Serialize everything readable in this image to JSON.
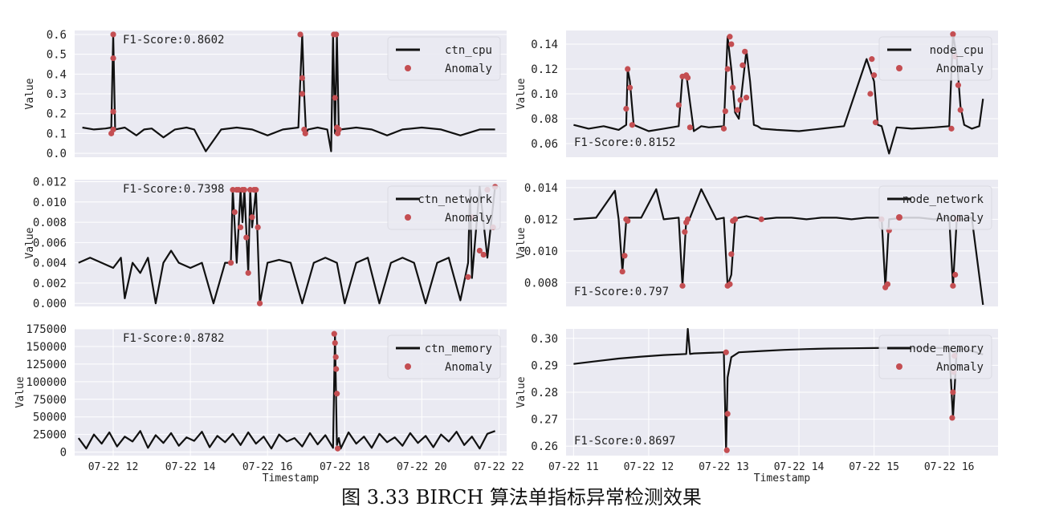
{
  "caption": "图 3.33 BIRCH 算法单指标异常检测效果",
  "colors": {
    "plot_bg": "#eaeaf2",
    "grid": "#ffffff",
    "line": "#111111",
    "anomaly": "#c44e52"
  },
  "chart_data": [
    {
      "type": "line",
      "legend": [
        "ctn_cpu",
        "Anomaly"
      ],
      "legend_position": "top-right",
      "score_text": "F1-Score:0.8602",
      "score_position": "top-left",
      "ylabel": "Value",
      "xlabel": "",
      "grid": true,
      "ylim": [
        -0.02,
        0.62
      ],
      "yticks": [
        0.0,
        0.1,
        0.2,
        0.3,
        0.4,
        0.5,
        0.6
      ],
      "ytick_labels": [
        "0.0",
        "0.1",
        "0.2",
        "0.3",
        "0.4",
        "0.5",
        "0.6"
      ],
      "xlim": [
        11.0,
        22.2
      ],
      "xticks": [],
      "xtick_labels": [],
      "series": [
        {
          "x": [
            11.2,
            11.5,
            11.8,
            11.95,
            12.0,
            12.05,
            12.3,
            12.6,
            12.8,
            13.0,
            13.3,
            13.6,
            13.9,
            14.1,
            14.4,
            14.8,
            15.2,
            15.6,
            16.0,
            16.4,
            16.8,
            16.9,
            16.95,
            17.0,
            17.05,
            17.3,
            17.55,
            17.65,
            17.7,
            17.75,
            17.8,
            17.85,
            17.9,
            18.3,
            18.7,
            19.1,
            19.5,
            20.0,
            20.5,
            21.0,
            21.5,
            21.9
          ],
          "y": [
            0.13,
            0.12,
            0.125,
            0.13,
            0.6,
            0.12,
            0.13,
            0.09,
            0.12,
            0.125,
            0.08,
            0.12,
            0.13,
            0.12,
            0.01,
            0.12,
            0.13,
            0.12,
            0.09,
            0.12,
            0.13,
            0.6,
            0.3,
            0.1,
            0.12,
            0.13,
            0.12,
            0.01,
            0.6,
            0.1,
            0.6,
            0.1,
            0.12,
            0.13,
            0.12,
            0.09,
            0.12,
            0.13,
            0.12,
            0.09,
            0.12,
            0.12
          ]
        }
      ],
      "anomalies": {
        "x": [
          11.95,
          12.0,
          12.0,
          12.0,
          12.0,
          16.85,
          16.9,
          16.9,
          16.95,
          16.98,
          17.72,
          17.75,
          17.78,
          17.8,
          17.82,
          17.85
        ],
        "y": [
          0.1,
          0.6,
          0.48,
          0.21,
          0.12,
          0.6,
          0.38,
          0.3,
          0.12,
          0.1,
          0.6,
          0.28,
          0.6,
          0.13,
          0.1,
          0.12
        ]
      }
    },
    {
      "type": "line",
      "legend": [
        "node_cpu",
        "Anomaly"
      ],
      "legend_position": "top-right",
      "score_text": "F1-Score:0.8152",
      "score_position": "bottom-left",
      "ylabel": "Value",
      "xlabel": "",
      "grid": true,
      "ylim": [
        0.049,
        0.151
      ],
      "yticks": [
        0.06,
        0.08,
        0.1,
        0.12,
        0.14
      ],
      "ytick_labels": [
        "0.06",
        "0.08",
        "0.10",
        "0.12",
        "0.14"
      ],
      "xlim": [
        10.9,
        16.65
      ],
      "xticks": [],
      "xtick_labels": [],
      "series": [
        {
          "x": [
            11.0,
            11.2,
            11.4,
            11.6,
            11.7,
            11.72,
            11.75,
            11.8,
            12.0,
            12.2,
            12.4,
            12.45,
            12.5,
            12.6,
            12.7,
            12.8,
            13.0,
            13.05,
            13.1,
            13.15,
            13.2,
            13.3,
            13.35,
            13.4,
            13.45,
            13.5,
            13.7,
            14.0,
            14.3,
            14.6,
            14.9,
            15.0,
            15.05,
            15.1,
            15.2,
            15.3,
            15.5,
            15.8,
            16.0,
            16.05,
            16.1,
            16.15,
            16.2,
            16.3,
            16.4,
            16.45
          ],
          "y": [
            0.075,
            0.072,
            0.074,
            0.071,
            0.075,
            0.12,
            0.11,
            0.075,
            0.07,
            0.072,
            0.074,
            0.115,
            0.116,
            0.07,
            0.074,
            0.073,
            0.074,
            0.146,
            0.12,
            0.085,
            0.08,
            0.135,
            0.11,
            0.075,
            0.074,
            0.072,
            0.071,
            0.07,
            0.072,
            0.074,
            0.128,
            0.11,
            0.075,
            0.074,
            0.052,
            0.073,
            0.072,
            0.073,
            0.074,
            0.148,
            0.13,
            0.09,
            0.075,
            0.072,
            0.074,
            0.096
          ]
        }
      ],
      "anomalies": {
        "x": [
          11.7,
          11.72,
          11.75,
          11.78,
          12.4,
          12.45,
          12.5,
          12.52,
          12.55,
          13.0,
          13.02,
          13.05,
          13.08,
          13.1,
          13.12,
          13.18,
          13.22,
          13.25,
          13.28,
          13.3,
          14.95,
          14.97,
          15.0,
          15.02,
          16.03,
          16.05,
          16.08,
          16.12,
          16.15
        ],
        "y": [
          0.088,
          0.12,
          0.105,
          0.075,
          0.091,
          0.114,
          0.115,
          0.113,
          0.073,
          0.072,
          0.086,
          0.12,
          0.146,
          0.14,
          0.105,
          0.087,
          0.095,
          0.123,
          0.134,
          0.097,
          0.1,
          0.128,
          0.115,
          0.077,
          0.072,
          0.148,
          0.13,
          0.107,
          0.087
        ]
      }
    },
    {
      "type": "line",
      "legend": [
        "ctn_network",
        "Anomaly"
      ],
      "legend_position": "top-right",
      "score_text": "F1-Score:0.7398",
      "score_position": "top-left",
      "ylabel": "Value",
      "xlabel": "",
      "grid": true,
      "ylim": [
        -0.0003,
        0.0122
      ],
      "yticks": [
        0.0,
        0.002,
        0.004,
        0.006,
        0.008,
        0.01,
        0.012
      ],
      "ytick_labels": [
        "0.000",
        "0.002",
        "0.004",
        "0.006",
        "0.008",
        "0.010",
        "0.012"
      ],
      "xlim": [
        11.0,
        22.2
      ],
      "xticks": [],
      "xtick_labels": [],
      "series": [
        {
          "x": [
            11.1,
            11.4,
            11.7,
            12.0,
            12.2,
            12.3,
            12.5,
            12.7,
            12.9,
            13.1,
            13.3,
            13.5,
            13.7,
            14.0,
            14.3,
            14.6,
            14.9,
            15.05,
            15.1,
            15.2,
            15.3,
            15.35,
            15.4,
            15.5,
            15.55,
            15.6,
            15.7,
            15.8,
            16.0,
            16.3,
            16.6,
            16.9,
            17.2,
            17.5,
            17.8,
            18.0,
            18.3,
            18.6,
            18.9,
            19.2,
            19.5,
            19.8,
            20.1,
            20.4,
            20.7,
            21.0,
            21.2,
            21.25,
            21.3,
            21.5,
            21.7,
            21.9
          ],
          "y": [
            0.004,
            0.0045,
            0.004,
            0.0035,
            0.0045,
            0.0005,
            0.004,
            0.003,
            0.0045,
            0.0,
            0.004,
            0.0052,
            0.004,
            0.0035,
            0.004,
            0.0,
            0.004,
            0.004,
            0.0112,
            0.004,
            0.0112,
            0.008,
            0.0112,
            0.003,
            0.0112,
            0.0075,
            0.0112,
            0.0,
            0.004,
            0.0043,
            0.004,
            0.0,
            0.004,
            0.0045,
            0.004,
            0.0,
            0.004,
            0.0045,
            0.0,
            0.004,
            0.0045,
            0.004,
            0.0,
            0.004,
            0.0045,
            0.0003,
            0.004,
            0.0112,
            0.0025,
            0.0115,
            0.0045,
            0.0115
          ]
        }
      ],
      "anomalies": {
        "x": [
          15.05,
          15.1,
          15.15,
          15.2,
          15.25,
          15.3,
          15.35,
          15.4,
          15.45,
          15.5,
          15.55,
          15.6,
          15.65,
          15.7,
          15.75,
          15.8,
          21.2,
          21.3,
          21.5,
          21.6,
          21.7,
          21.85,
          21.9
        ],
        "y": [
          0.004,
          0.0112,
          0.009,
          0.0112,
          0.0112,
          0.0075,
          0.0112,
          0.0112,
          0.0065,
          0.003,
          0.0112,
          0.0085,
          0.0112,
          0.0112,
          0.0075,
          0.0,
          0.0026,
          0.0085,
          0.0052,
          0.0048,
          0.0112,
          0.0075,
          0.0115
        ]
      }
    },
    {
      "type": "line",
      "legend": [
        "node_network",
        "Anomaly"
      ],
      "legend_position": "top-right",
      "score_text": "F1-Score:0.797",
      "score_position": "bottom-left",
      "ylabel": "Value",
      "xlabel": "",
      "grid": true,
      "ylim": [
        0.0065,
        0.0145
      ],
      "yticks": [
        0.008,
        0.01,
        0.012,
        0.014
      ],
      "ytick_labels": [
        "0.008",
        "0.010",
        "0.012",
        "0.014"
      ],
      "xlim": [
        10.9,
        16.65
      ],
      "xticks": [],
      "xtick_labels": [],
      "series": [
        {
          "x": [
            11.0,
            11.3,
            11.55,
            11.6,
            11.65,
            11.7,
            11.72,
            11.9,
            12.1,
            12.2,
            12.4,
            12.45,
            12.5,
            12.55,
            12.7,
            12.9,
            13.0,
            13.05,
            13.1,
            13.15,
            13.2,
            13.3,
            13.5,
            13.7,
            13.9,
            14.1,
            14.3,
            14.5,
            14.7,
            14.9,
            15.1,
            15.15,
            15.2,
            15.4,
            15.6,
            15.8,
            16.0,
            16.05,
            16.1,
            16.15,
            16.3,
            16.45
          ],
          "y": [
            0.012,
            0.0121,
            0.0138,
            0.012,
            0.0087,
            0.0119,
            0.0121,
            0.0121,
            0.0139,
            0.012,
            0.0121,
            0.0078,
            0.012,
            0.0121,
            0.0139,
            0.012,
            0.0121,
            0.0078,
            0.0085,
            0.012,
            0.0121,
            0.0122,
            0.012,
            0.0121,
            0.0121,
            0.012,
            0.0121,
            0.0121,
            0.012,
            0.0121,
            0.0121,
            0.0077,
            0.012,
            0.0121,
            0.0121,
            0.012,
            0.0121,
            0.0078,
            0.0119,
            0.012,
            0.0121,
            0.0066
          ]
        }
      ],
      "anomalies": {
        "x": [
          11.65,
          11.68,
          11.7,
          11.72,
          12.45,
          12.48,
          12.5,
          12.52,
          13.05,
          13.08,
          13.1,
          13.12,
          13.15,
          13.5,
          15.1,
          15.15,
          15.18,
          15.2,
          16.05,
          16.08,
          16.1
        ],
        "y": [
          0.0087,
          0.0097,
          0.012,
          0.0119,
          0.0078,
          0.0112,
          0.0118,
          0.012,
          0.0078,
          0.0079,
          0.0098,
          0.0119,
          0.012,
          0.012,
          0.012,
          0.0077,
          0.0079,
          0.0113,
          0.0078,
          0.0085,
          0.012
        ]
      }
    },
    {
      "type": "line",
      "legend": [
        "ctn_memory",
        "Anomaly"
      ],
      "legend_position": "top-right",
      "score_text": "F1-Score:0.8782",
      "score_position": "top-left",
      "ylabel": "Value",
      "xlabel": "Timestamp",
      "grid": true,
      "ylim": [
        -5000,
        175000
      ],
      "yticks": [
        0,
        25000,
        50000,
        75000,
        100000,
        125000,
        150000,
        175000
      ],
      "ytick_labels": [
        "0",
        "25000",
        "50000",
        "75000",
        "100000",
        "125000",
        "150000",
        "175000"
      ],
      "xlim": [
        11.0,
        22.2
      ],
      "xticks": [
        12,
        14,
        16,
        18,
        20,
        22
      ],
      "xtick_labels": [
        "07-22 12",
        "07-22 14",
        "07-22 16",
        "07-22 18",
        "07-22 20",
        "07-22 22"
      ],
      "series": [
        {
          "x": [
            11.1,
            11.3,
            11.5,
            11.7,
            11.9,
            12.1,
            12.3,
            12.5,
            12.7,
            12.9,
            13.1,
            13.3,
            13.5,
            13.7,
            13.9,
            14.1,
            14.3,
            14.5,
            14.7,
            14.9,
            15.1,
            15.3,
            15.5,
            15.7,
            15.9,
            16.1,
            16.3,
            16.5,
            16.7,
            16.9,
            17.1,
            17.3,
            17.5,
            17.7,
            17.75,
            17.8,
            17.85,
            17.9,
            18.1,
            18.3,
            18.5,
            18.7,
            18.9,
            19.1,
            19.3,
            19.5,
            19.7,
            19.9,
            20.1,
            20.3,
            20.5,
            20.7,
            20.9,
            21.1,
            21.3,
            21.5,
            21.7,
            21.9
          ],
          "y": [
            20000,
            5000,
            25000,
            12000,
            28000,
            8000,
            22000,
            15000,
            30000,
            6000,
            24000,
            13000,
            27000,
            9000,
            21000,
            16000,
            29000,
            7000,
            23000,
            14000,
            26000,
            10000,
            28000,
            12000,
            22000,
            5000,
            25000,
            15000,
            20000,
            8000,
            27000,
            11000,
            24000,
            6000,
            168000,
            10000,
            20000,
            5000,
            28000,
            12000,
            22000,
            6000,
            26000,
            14000,
            21000,
            9000,
            27000,
            13000,
            23000,
            7000,
            25000,
            15000,
            29000,
            10000,
            22000,
            5000,
            26000,
            30000
          ]
        }
      ],
      "anomalies": {
        "x": [
          17.73,
          17.75,
          17.77,
          17.78,
          17.8,
          17.82
        ],
        "y": [
          168000,
          155000,
          135000,
          118000,
          83000,
          5000
        ]
      }
    },
    {
      "type": "line",
      "legend": [
        "node_memory",
        "Anomaly"
      ],
      "legend_position": "top-right",
      "score_text": "F1-Score:0.8697",
      "score_position": "bottom-left",
      "ylabel": "Value",
      "xlabel": "Timestamp",
      "grid": true,
      "ylim": [
        0.2565,
        0.3035
      ],
      "yticks": [
        0.26,
        0.27,
        0.28,
        0.29,
        0.3
      ],
      "ytick_labels": [
        "0.26",
        "0.27",
        "0.28",
        "0.29",
        "0.30"
      ],
      "xlim": [
        10.9,
        16.65
      ],
      "xticks": [
        11,
        12,
        13,
        14,
        15,
        16
      ],
      "xtick_labels": [
        "07-22 11",
        "07-22 12",
        "07-22 13",
        "07-22 14",
        "07-22 15",
        "07-22 16"
      ],
      "series": [
        {
          "x": [
            11.0,
            11.3,
            11.6,
            11.9,
            12.2,
            12.5,
            12.52,
            12.55,
            12.6,
            12.8,
            13.0,
            13.03,
            13.05,
            13.1,
            13.2,
            13.5,
            13.8,
            14.1,
            14.4,
            14.7,
            15.0,
            15.3,
            15.6,
            15.9,
            16.0,
            16.05,
            16.1,
            16.2,
            16.45
          ],
          "y": [
            0.2905,
            0.2915,
            0.2925,
            0.2932,
            0.2938,
            0.2942,
            0.3035,
            0.2942,
            0.2944,
            0.2946,
            0.2948,
            0.2585,
            0.2855,
            0.293,
            0.2948,
            0.2953,
            0.2957,
            0.296,
            0.2962,
            0.2963,
            0.2964,
            0.2965,
            0.2965,
            0.2964,
            0.2964,
            0.2705,
            0.2955,
            0.2962,
            0.294
          ]
        }
      ],
      "anomalies": {
        "x": [
          13.03,
          13.04,
          13.05,
          16.04,
          16.05,
          16.06,
          16.07
        ],
        "y": [
          0.2948,
          0.2585,
          0.272,
          0.2705,
          0.28,
          0.2875,
          0.2935
        ]
      }
    }
  ]
}
